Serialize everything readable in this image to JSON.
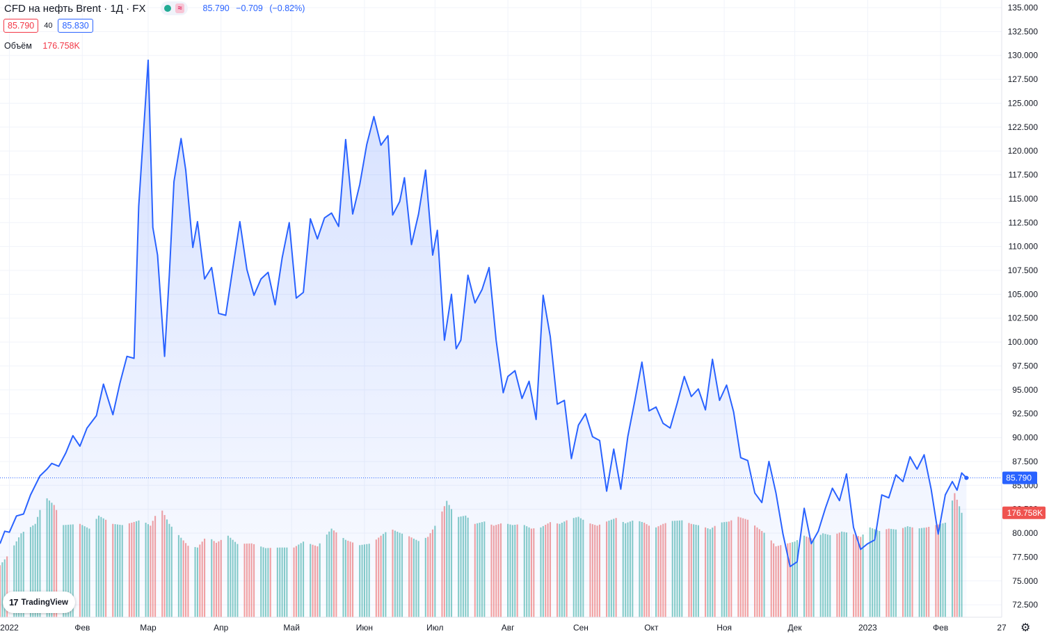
{
  "header": {
    "title": "CFD на нефть Brent · 1Д · FX",
    "approx_icon": "≈",
    "last": "85.790",
    "change": "−0.709",
    "change_pct": "(−0.82%)"
  },
  "prices": {
    "sell": "85.790",
    "spread": "40",
    "buy": "85.830"
  },
  "volume": {
    "label": "Объём",
    "value": "176.758K"
  },
  "price_tag": "85.790",
  "volume_tag": "176.758K",
  "logo_text": "TradingView",
  "logo_mark": "17",
  "colors": {
    "line": "#2962ff",
    "up_volume": "#26a69a",
    "down_volume": "#ef5350",
    "grid": "#f0f3fa"
  },
  "chart_data": {
    "type": "area",
    "y_ticks": [
      "72.500",
      "75.000",
      "77.500",
      "80.000",
      "82.500",
      "85.000",
      "87.500",
      "90.000",
      "92.500",
      "95.000",
      "97.500",
      "100.000",
      "102.500",
      "105.000",
      "107.500",
      "110.000",
      "112.500",
      "115.000",
      "117.500",
      "120.000",
      "122.500",
      "125.000",
      "127.500",
      "130.000",
      "132.500",
      "135.000"
    ],
    "x_ticks": [
      "2022",
      "Фев",
      "Мар",
      "Апр",
      "Май",
      "Июн",
      "Июл",
      "Авг",
      "Сен",
      "Окт",
      "Ноя",
      "Дек",
      "2023",
      "Фев",
      "27"
    ],
    "ylim": [
      71.2,
      135.8
    ],
    "x_start": "2021-12-28",
    "x_end": "2023-02-27",
    "series": [
      {
        "close": [
          [
            "2021-12-28",
            78.9
          ],
          [
            "2021-12-30",
            80.2
          ],
          [
            "2022-01-01",
            80.1
          ],
          [
            "2022-01-04",
            81.8
          ],
          [
            "2022-01-07",
            82.0
          ],
          [
            "2022-01-10",
            84.0
          ],
          [
            "2022-01-14",
            86.0
          ],
          [
            "2022-01-17",
            86.7
          ],
          [
            "2022-01-19",
            87.3
          ],
          [
            "2022-01-22",
            87.0
          ],
          [
            "2022-01-25",
            88.4
          ],
          [
            "2022-01-28",
            90.2
          ],
          [
            "2022-01-31",
            89.1
          ],
          [
            "2022-02-03",
            91.0
          ],
          [
            "2022-02-07",
            92.3
          ],
          [
            "2022-02-10",
            95.6
          ],
          [
            "2022-02-14",
            92.4
          ],
          [
            "2022-02-17",
            95.7
          ],
          [
            "2022-02-20",
            98.5
          ],
          [
            "2022-02-23",
            98.3
          ],
          [
            "2022-02-25",
            114.2
          ],
          [
            "2022-03-01",
            129.5
          ],
          [
            "2022-03-03",
            112.0
          ],
          [
            "2022-03-05",
            109.1
          ],
          [
            "2022-03-08",
            98.5
          ],
          [
            "2022-03-10",
            107.0
          ],
          [
            "2022-03-12",
            116.8
          ],
          [
            "2022-03-15",
            121.3
          ],
          [
            "2022-03-17",
            118.0
          ],
          [
            "2022-03-20",
            109.9
          ],
          [
            "2022-03-22",
            112.6
          ],
          [
            "2022-03-25",
            106.6
          ],
          [
            "2022-03-28",
            107.8
          ],
          [
            "2022-03-31",
            103.0
          ],
          [
            "2022-04-03",
            102.8
          ],
          [
            "2022-04-06",
            107.7
          ],
          [
            "2022-04-09",
            112.6
          ],
          [
            "2022-04-12",
            107.6
          ],
          [
            "2022-04-15",
            104.9
          ],
          [
            "2022-04-18",
            106.6
          ],
          [
            "2022-04-21",
            107.3
          ],
          [
            "2022-04-24",
            103.9
          ],
          [
            "2022-04-27",
            108.8
          ],
          [
            "2022-04-30",
            112.5
          ],
          [
            "2022-05-03",
            104.6
          ],
          [
            "2022-05-06",
            105.2
          ],
          [
            "2022-05-09",
            112.9
          ],
          [
            "2022-05-12",
            110.8
          ],
          [
            "2022-05-15",
            113.0
          ],
          [
            "2022-05-18",
            113.5
          ],
          [
            "2022-05-21",
            112.1
          ],
          [
            "2022-05-24",
            121.2
          ],
          [
            "2022-05-27",
            113.4
          ],
          [
            "2022-05-30",
            116.5
          ],
          [
            "2022-06-02",
            120.7
          ],
          [
            "2022-06-05",
            123.6
          ],
          [
            "2022-06-08",
            120.6
          ],
          [
            "2022-06-11",
            121.6
          ],
          [
            "2022-06-13",
            113.3
          ],
          [
            "2022-06-16",
            114.7
          ],
          [
            "2022-06-18",
            117.2
          ],
          [
            "2022-06-21",
            110.2
          ],
          [
            "2022-06-24",
            113.4
          ],
          [
            "2022-06-27",
            118.0
          ],
          [
            "2022-06-30",
            109.1
          ],
          [
            "2022-07-02",
            111.7
          ],
          [
            "2022-07-05",
            100.2
          ],
          [
            "2022-07-08",
            105.0
          ],
          [
            "2022-07-10",
            99.3
          ],
          [
            "2022-07-12",
            100.2
          ],
          [
            "2022-07-15",
            107.0
          ],
          [
            "2022-07-18",
            104.1
          ],
          [
            "2022-07-21",
            105.5
          ],
          [
            "2022-07-24",
            107.8
          ],
          [
            "2022-07-27",
            100.2
          ],
          [
            "2022-07-30",
            94.7
          ],
          [
            "2022-08-01",
            96.4
          ],
          [
            "2022-08-04",
            97.0
          ],
          [
            "2022-08-07",
            94.1
          ],
          [
            "2022-08-10",
            95.9
          ],
          [
            "2022-08-13",
            91.9
          ],
          [
            "2022-08-16",
            104.9
          ],
          [
            "2022-08-19",
            100.6
          ],
          [
            "2022-08-22",
            93.5
          ],
          [
            "2022-08-25",
            93.9
          ],
          [
            "2022-08-28",
            87.8
          ],
          [
            "2022-08-31",
            91.3
          ],
          [
            "2022-09-03",
            92.5
          ],
          [
            "2022-09-06",
            90.1
          ],
          [
            "2022-09-09",
            89.7
          ],
          [
            "2022-09-12",
            84.4
          ],
          [
            "2022-09-15",
            88.8
          ],
          [
            "2022-09-18",
            84.6
          ],
          [
            "2022-09-21",
            90.1
          ],
          [
            "2022-09-24",
            93.9
          ],
          [
            "2022-09-27",
            97.9
          ],
          [
            "2022-09-30",
            92.8
          ],
          [
            "2022-10-03",
            93.2
          ],
          [
            "2022-10-06",
            91.5
          ],
          [
            "2022-10-09",
            91.0
          ],
          [
            "2022-10-12",
            93.6
          ],
          [
            "2022-10-15",
            96.4
          ],
          [
            "2022-10-18",
            94.3
          ],
          [
            "2022-10-21",
            95.1
          ],
          [
            "2022-10-24",
            92.9
          ],
          [
            "2022-10-27",
            98.2
          ],
          [
            "2022-10-30",
            93.9
          ],
          [
            "2022-11-02",
            95.5
          ],
          [
            "2022-11-05",
            92.7
          ],
          [
            "2022-11-08",
            87.9
          ],
          [
            "2022-11-11",
            87.6
          ],
          [
            "2022-11-14",
            84.2
          ],
          [
            "2022-11-17",
            83.2
          ],
          [
            "2022-11-20",
            87.5
          ],
          [
            "2022-11-23",
            84.2
          ],
          [
            "2022-11-26",
            79.9
          ],
          [
            "2022-11-29",
            76.5
          ],
          [
            "2022-12-02",
            77.0
          ],
          [
            "2022-12-05",
            82.6
          ],
          [
            "2022-12-08",
            78.9
          ],
          [
            "2022-12-11",
            80.2
          ],
          [
            "2022-12-14",
            82.6
          ],
          [
            "2022-12-17",
            84.7
          ],
          [
            "2022-12-20",
            83.4
          ],
          [
            "2022-12-23",
            86.2
          ],
          [
            "2022-12-26",
            80.6
          ],
          [
            "2022-12-29",
            78.3
          ],
          [
            "2023-01-01",
            78.9
          ],
          [
            "2023-01-04",
            79.3
          ],
          [
            "2023-01-07",
            84.0
          ],
          [
            "2023-01-10",
            83.7
          ],
          [
            "2023-01-13",
            86.1
          ],
          [
            "2023-01-16",
            85.4
          ],
          [
            "2023-01-19",
            88.0
          ],
          [
            "2023-01-22",
            86.7
          ],
          [
            "2023-01-25",
            88.2
          ],
          [
            "2023-01-28",
            84.6
          ],
          [
            "2023-01-31",
            79.9
          ],
          [
            "2023-02-03",
            84.0
          ],
          [
            "2023-02-06",
            85.4
          ],
          [
            "2023-02-08",
            84.5
          ],
          [
            "2023-02-10",
            86.3
          ],
          [
            "2023-02-12",
            85.79
          ]
        ]
      }
    ],
    "volume_k": [
      [
        "2021-12-28",
        88
      ],
      [
        "2022-01-01",
        108
      ],
      [
        "2022-01-06",
        142
      ],
      [
        "2022-01-12",
        158
      ],
      [
        "2022-01-16",
        205
      ],
      [
        "2022-01-20",
        190
      ],
      [
        "2022-01-24",
        156
      ],
      [
        "2022-01-31",
        158
      ],
      [
        "2022-02-04",
        150
      ],
      [
        "2022-02-08",
        172
      ],
      [
        "2022-02-14",
        158
      ],
      [
        "2022-02-18",
        156
      ],
      [
        "2022-02-22",
        160
      ],
      [
        "2022-02-26",
        165
      ],
      [
        "2022-03-02",
        155
      ],
      [
        "2022-03-06",
        188
      ],
      [
        "2022-03-10",
        158
      ],
      [
        "2022-03-14",
        139
      ],
      [
        "2022-03-18",
        121
      ],
      [
        "2022-03-22",
        118
      ],
      [
        "2022-03-26",
        138
      ],
      [
        "2022-03-30",
        126
      ],
      [
        "2022-04-04",
        138
      ],
      [
        "2022-04-08",
        124
      ],
      [
        "2022-04-14",
        125
      ],
      [
        "2022-04-20",
        117
      ],
      [
        "2022-04-26",
        118
      ],
      [
        "2022-05-02",
        118
      ],
      [
        "2022-05-06",
        128
      ],
      [
        "2022-05-12",
        120
      ],
      [
        "2022-05-18",
        150
      ],
      [
        "2022-05-24",
        131
      ],
      [
        "2022-05-30",
        122
      ],
      [
        "2022-06-04",
        125
      ],
      [
        "2022-06-08",
        138
      ],
      [
        "2022-06-12",
        150
      ],
      [
        "2022-06-16",
        143
      ],
      [
        "2022-06-20",
        137
      ],
      [
        "2022-06-24",
        129
      ],
      [
        "2022-06-28",
        136
      ],
      [
        "2022-07-02",
        161
      ],
      [
        "2022-07-06",
        197
      ],
      [
        "2022-07-10",
        169
      ],
      [
        "2022-07-14",
        172
      ],
      [
        "2022-07-18",
        158
      ],
      [
        "2022-07-22",
        162
      ],
      [
        "2022-07-26",
        155
      ],
      [
        "2022-07-30",
        160
      ],
      [
        "2022-08-03",
        156
      ],
      [
        "2022-08-07",
        158
      ],
      [
        "2022-08-11",
        150
      ],
      [
        "2022-08-15",
        152
      ],
      [
        "2022-08-19",
        161
      ],
      [
        "2022-08-23",
        158
      ],
      [
        "2022-08-27",
        166
      ],
      [
        "2022-08-31",
        170
      ],
      [
        "2022-09-04",
        160
      ],
      [
        "2022-09-08",
        155
      ],
      [
        "2022-09-12",
        162
      ],
      [
        "2022-09-16",
        168
      ],
      [
        "2022-09-20",
        159
      ],
      [
        "2022-09-24",
        165
      ],
      [
        "2022-09-28",
        160
      ],
      [
        "2022-10-02",
        150
      ],
      [
        "2022-10-06",
        158
      ],
      [
        "2022-10-10",
        163
      ],
      [
        "2022-10-14",
        164
      ],
      [
        "2022-10-18",
        158
      ],
      [
        "2022-10-22",
        155
      ],
      [
        "2022-10-26",
        149
      ],
      [
        "2022-10-30",
        160
      ],
      [
        "2022-11-03",
        162
      ],
      [
        "2022-11-07",
        170
      ],
      [
        "2022-11-11",
        165
      ],
      [
        "2022-11-15",
        152
      ],
      [
        "2022-11-19",
        140
      ],
      [
        "2022-11-23",
        120
      ],
      [
        "2022-11-27",
        124
      ],
      [
        "2022-12-01",
        128
      ],
      [
        "2022-12-05",
        138
      ],
      [
        "2022-12-09",
        132
      ],
      [
        "2022-12-13",
        142
      ],
      [
        "2022-12-17",
        138
      ],
      [
        "2022-12-21",
        145
      ],
      [
        "2022-12-25",
        142
      ],
      [
        "2022-12-29",
        136
      ],
      [
        "2023-01-02",
        152
      ],
      [
        "2023-01-06",
        146
      ],
      [
        "2023-01-10",
        150
      ],
      [
        "2023-01-14",
        148
      ],
      [
        "2023-01-18",
        154
      ],
      [
        "2023-01-22",
        150
      ],
      [
        "2023-01-26",
        152
      ],
      [
        "2023-01-30",
        156
      ],
      [
        "2023-02-03",
        160
      ],
      [
        "2023-02-07",
        210
      ],
      [
        "2023-02-10",
        176.758
      ]
    ]
  }
}
